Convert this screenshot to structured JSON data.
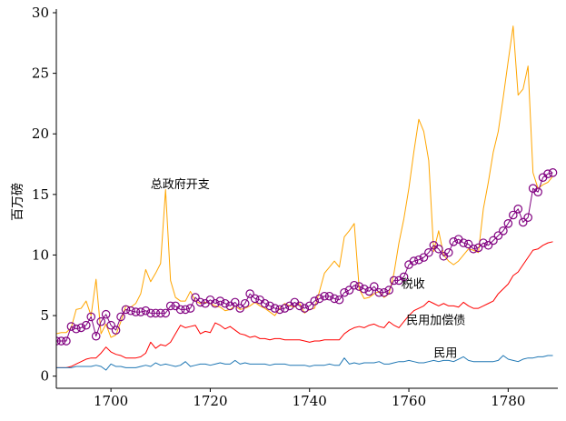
{
  "chart_data": {
    "type": "line",
    "ylabel": "百万磅",
    "xlim": [
      1689,
      1790
    ],
    "ylim": [
      -1,
      30.3
    ],
    "x_ticks": [
      1700,
      1720,
      1740,
      1760,
      1780
    ],
    "y_ticks": [
      0,
      5,
      10,
      15,
      20,
      25,
      30
    ],
    "x_start": 1689,
    "series": [
      {
        "name": "总政府开支",
        "color": "#ffa500",
        "marker": "none",
        "values": [
          3.5,
          3.6,
          3.6,
          4.0,
          5.5,
          5.6,
          6.2,
          5.0,
          8.0,
          3.5,
          4.3,
          3.2,
          3.4,
          4.5,
          5.8,
          5.7,
          6.0,
          6.8,
          8.8,
          7.8,
          8.5,
          9.3,
          15.4,
          7.9,
          6.5,
          6.2,
          6.2,
          7.0,
          6.2,
          6.0,
          6.1,
          6.0,
          5.8,
          5.7,
          5.4,
          5.5,
          5.8,
          5.5,
          5.6,
          5.8,
          6.1,
          5.8,
          5.6,
          5.3,
          5.0,
          5.6,
          6.0,
          5.8,
          5.7,
          6.0,
          5.2,
          5.5,
          5.6,
          7.0,
          8.5,
          9.0,
          9.5,
          9.0,
          11.5,
          12.0,
          12.6,
          7.2,
          6.4,
          6.5,
          6.8,
          7.0,
          6.5,
          6.8,
          8.5,
          11.0,
          13.0,
          15.5,
          18.5,
          21.2,
          20.2,
          17.8,
          10.3,
          12.0,
          10.0,
          9.5,
          9.2,
          9.5,
          10.0,
          10.5,
          10.4,
          10.2,
          13.8,
          16.0,
          18.5,
          20.2,
          23.0,
          26.0,
          28.9,
          23.2,
          23.7,
          25.6,
          16.8,
          15.5,
          15.8,
          16.0,
          16.5
        ]
      },
      {
        "name": "税收",
        "color": "#800080",
        "marker": "circle",
        "values": [
          2.9,
          2.9,
          2.9,
          4.1,
          3.9,
          4.0,
          4.2,
          4.9,
          3.3,
          4.5,
          5.1,
          4.2,
          3.8,
          4.9,
          5.5,
          5.4,
          5.3,
          5.3,
          5.4,
          5.2,
          5.2,
          5.2,
          5.2,
          5.8,
          5.8,
          5.5,
          5.5,
          5.6,
          6.5,
          6.1,
          6.0,
          6.3,
          6.0,
          6.2,
          6.0,
          5.8,
          6.1,
          5.6,
          6.0,
          6.8,
          6.4,
          6.3,
          6.0,
          5.8,
          5.6,
          5.5,
          5.6,
          5.8,
          6.1,
          5.8,
          5.6,
          5.8,
          6.2,
          6.4,
          6.6,
          6.6,
          6.4,
          6.3,
          6.9,
          7.1,
          7.5,
          7.4,
          7.2,
          7.0,
          7.4,
          6.9,
          6.9,
          7.1,
          7.9,
          7.9,
          8.2,
          9.2,
          9.5,
          9.6,
          9.8,
          10.2,
          10.8,
          10.5,
          9.9,
          10.2,
          11.1,
          11.3,
          11.0,
          10.9,
          10.5,
          10.6,
          11.0,
          10.8,
          11.2,
          11.6,
          12.0,
          12.6,
          13.3,
          13.8,
          12.7,
          13.1,
          15.5,
          15.2,
          16.4,
          16.7,
          16.8
        ]
      },
      {
        "name": "民用加偿债",
        "color": "#ff0000",
        "marker": "none",
        "values": [
          0.7,
          0.7,
          0.7,
          0.8,
          1.0,
          1.2,
          1.4,
          1.5,
          1.5,
          1.9,
          2.4,
          2.0,
          1.8,
          1.7,
          1.5,
          1.5,
          1.5,
          1.6,
          1.9,
          2.8,
          2.3,
          2.6,
          2.5,
          2.8,
          3.5,
          4.2,
          4.0,
          4.1,
          4.2,
          3.5,
          3.7,
          3.6,
          4.4,
          4.2,
          3.9,
          4.1,
          3.8,
          3.5,
          3.4,
          3.2,
          3.3,
          3.1,
          3.1,
          3.0,
          3.1,
          3.1,
          3.0,
          3.0,
          3.0,
          3.0,
          2.9,
          2.8,
          2.9,
          2.9,
          3.0,
          3.0,
          3.0,
          3.0,
          3.5,
          3.8,
          4.0,
          4.1,
          4.0,
          4.2,
          4.3,
          4.1,
          4.0,
          4.5,
          4.2,
          4.0,
          4.5,
          5.0,
          5.4,
          5.6,
          5.8,
          6.2,
          6.0,
          5.8,
          6.0,
          5.8,
          5.8,
          5.7,
          6.1,
          5.8,
          5.6,
          5.6,
          5.8,
          6.0,
          6.2,
          6.8,
          7.2,
          7.6,
          8.3,
          8.6,
          9.2,
          9.8,
          10.4,
          10.5,
          10.8,
          11.0,
          11.1
        ]
      },
      {
        "name": "民用",
        "color": "#1f77b4",
        "marker": "none",
        "values": [
          0.7,
          0.7,
          0.7,
          0.7,
          0.8,
          0.8,
          0.8,
          0.8,
          0.9,
          0.8,
          0.5,
          1.0,
          0.8,
          0.8,
          0.7,
          0.7,
          0.7,
          0.8,
          0.9,
          0.8,
          1.1,
          0.9,
          1.0,
          0.9,
          0.8,
          0.9,
          1.2,
          0.8,
          0.9,
          1.0,
          1.0,
          0.9,
          1.0,
          1.1,
          1.0,
          1.0,
          1.3,
          1.0,
          1.1,
          1.0,
          1.0,
          1.0,
          1.0,
          0.9,
          1.0,
          1.0,
          1.0,
          0.9,
          0.9,
          0.9,
          0.9,
          0.8,
          0.9,
          0.9,
          0.9,
          1.0,
          0.9,
          0.9,
          1.5,
          1.0,
          1.1,
          1.0,
          1.1,
          1.1,
          1.1,
          1.2,
          1.0,
          1.0,
          1.1,
          1.2,
          1.2,
          1.3,
          1.2,
          1.1,
          1.1,
          1.2,
          1.3,
          1.2,
          1.3,
          1.3,
          1.2,
          1.4,
          1.6,
          1.3,
          1.2,
          1.2,
          1.2,
          1.2,
          1.2,
          1.3,
          1.7,
          1.4,
          1.3,
          1.2,
          1.4,
          1.5,
          1.5,
          1.6,
          1.6,
          1.7,
          1.7
        ]
      }
    ],
    "annotations": [
      {
        "text": "总政府开支",
        "x": 1708,
        "y": 15.5
      },
      {
        "text": "税收",
        "x": 1758.5,
        "y": 7.3
      },
      {
        "text": "民用加偿债",
        "x": 1759.5,
        "y": 4.3
      },
      {
        "text": "民用",
        "x": 1765,
        "y": 1.6
      }
    ]
  }
}
